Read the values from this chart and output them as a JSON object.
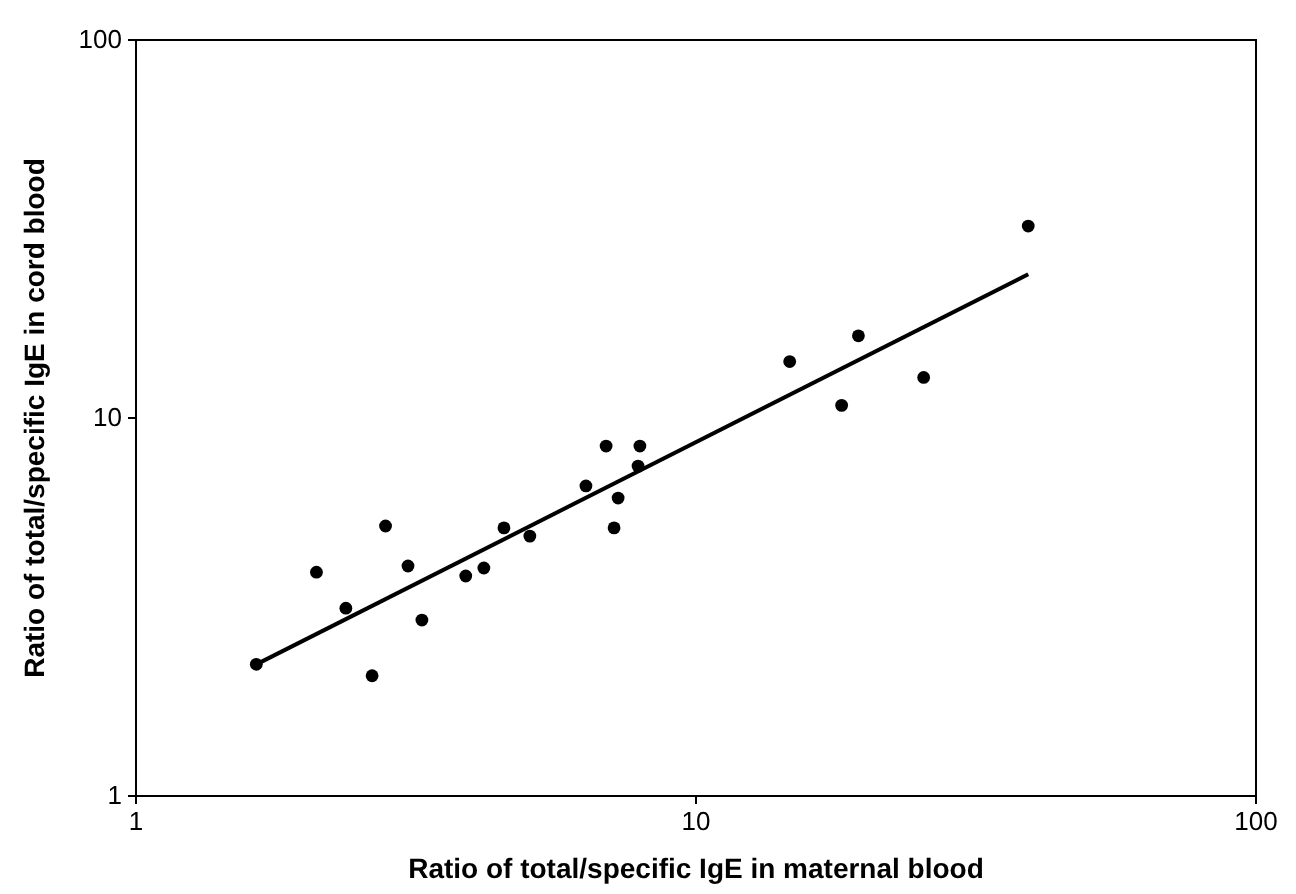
{
  "chart_data": {
    "type": "scatter",
    "xlabel": "Ratio of total/specific IgE in maternal blood",
    "ylabel": "Ratio of total/specific IgE in cord blood",
    "log": "xy",
    "grid": false,
    "marker": "circle",
    "xlim": [
      1,
      100
    ],
    "ylim": [
      1,
      100
    ],
    "xticks": [
      1,
      10,
      100
    ],
    "yticks": [
      1,
      10,
      100
    ],
    "series": [
      {
        "color": "#000000",
        "x": [
          1.64,
          2.1,
          2.37,
          2.79,
          2.64,
          3.06,
          3.24,
          3.88,
          4.18,
          4.54,
          5.05,
          6.36,
          6.91,
          7.94,
          7.88,
          7.26,
          7.14,
          14.7,
          19.5,
          18.2,
          25.5,
          39.2
        ],
        "values": [
          2.23,
          3.91,
          3.14,
          5.18,
          2.08,
          4.06,
          2.92,
          3.82,
          4.01,
          5.12,
          4.87,
          6.61,
          8.43,
          8.43,
          7.46,
          6.14,
          5.12,
          14.1,
          16.5,
          10.8,
          12.8,
          32.2
        ]
      },
      {
        "type": "line",
        "color": "#000000",
        "marker": "none",
        "line_style": "solid",
        "x": [
          1.64,
          39.2
        ],
        "values": [
          2.23,
          24.0
        ]
      }
    ]
  }
}
